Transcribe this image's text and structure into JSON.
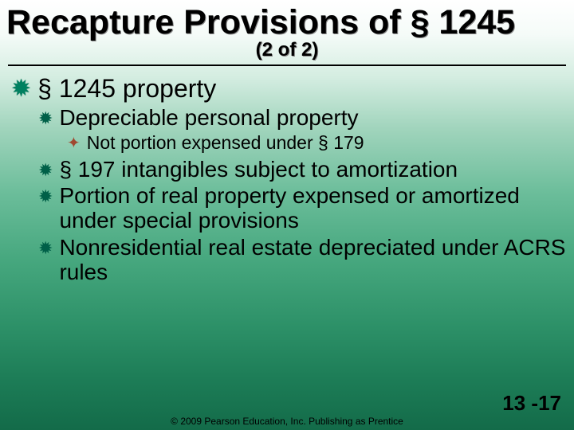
{
  "title": "Recapture Provisions of § 1245",
  "subtitle": "(2 of 2)",
  "bullets": {
    "level1": {
      "text": "§ 1245 property"
    },
    "level2a": {
      "text": "Depreciable personal property"
    },
    "level3a": {
      "text": "Not portion expensed under § 179"
    },
    "level2b": {
      "text": "§ 197 intangibles subject to amortization"
    },
    "level2c": {
      "text": "Portion of real property expensed or amortized under special provisions"
    },
    "level2d": {
      "text": "Nonresidential real estate depreciated under ACRS rules"
    }
  },
  "footer": "© 2009 Pearson Education, Inc. Publishing as Prentice",
  "pagenum": "13 -17",
  "style": {
    "bullet_l1_glyph": "✹",
    "bullet_l2_glyph": "✹",
    "bullet_l3_glyph": "✦",
    "bullet_l1_color": "#008060",
    "bullet_l2_color": "#006048",
    "bullet_l3_color": "#a04830",
    "title_fontsize": 43,
    "subtitle_fontsize": 24,
    "l1_fontsize": 32,
    "l2_fontsize": 28,
    "l3_fontsize": 23,
    "footer_fontsize": 12,
    "pagenum_fontsize": 26,
    "gradient_stops": [
      "#ffffff",
      "#d4ede1",
      "#6bbd9a",
      "#2e9269",
      "#136b49"
    ]
  }
}
